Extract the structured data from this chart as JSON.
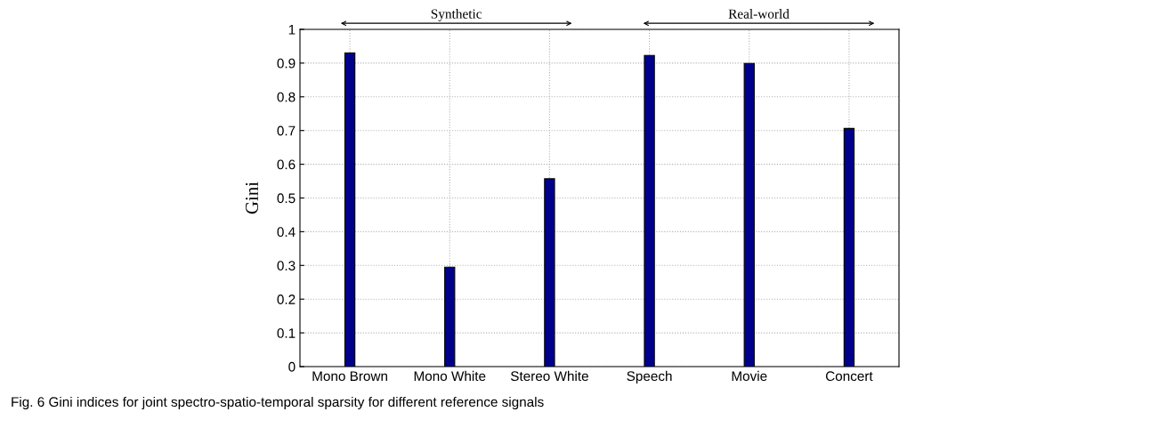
{
  "chart_data": {
    "type": "bar",
    "categories": [
      "Mono Brown",
      "Mono White",
      "Stereo White",
      "Speech",
      "Movie",
      "Concert"
    ],
    "values": [
      0.93,
      0.295,
      0.557,
      0.923,
      0.899,
      0.706
    ],
    "color": "#00008b",
    "ylabel": "Gini",
    "ylim": [
      0,
      1
    ],
    "yticks": [
      0,
      0.1,
      0.2,
      0.3,
      0.4,
      0.5,
      0.6,
      0.7,
      0.8,
      0.9,
      1
    ],
    "grid": true,
    "annotations": [
      "Synthetic",
      "Real-world",
      "Fig. 6 Gini indices for joint spectro-spatio-temporal sparsity for different reference signals"
    ]
  }
}
